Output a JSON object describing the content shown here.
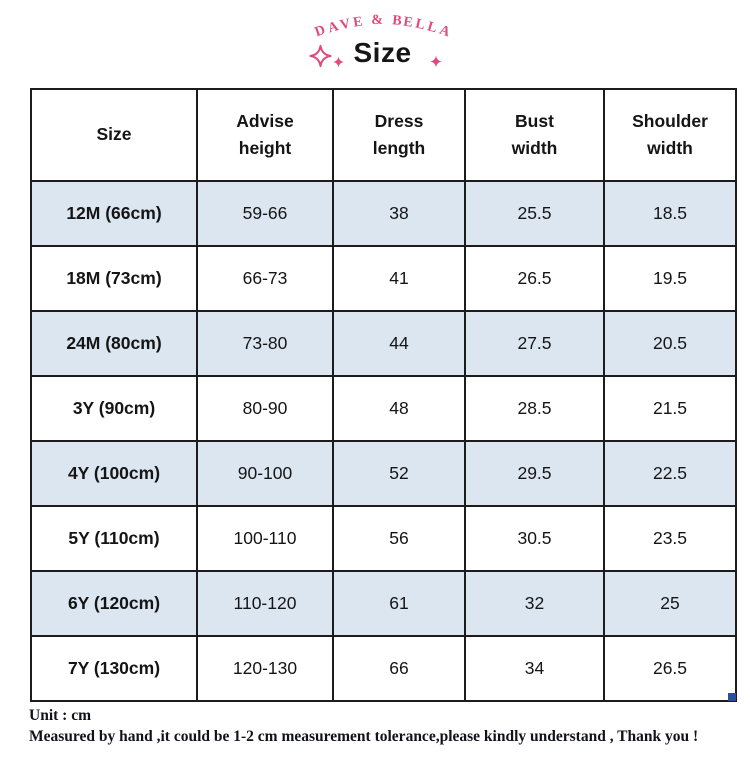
{
  "colors": {
    "accent_pink": "#e2487a",
    "stripe_blue": "#dce6f1",
    "border_dark": "#1c1c1c",
    "handle_blue": "#2e4d9b"
  },
  "header": {
    "brand": "DAVE & BELLA",
    "title": "Size"
  },
  "icons": {
    "left_large": "sparkle-4-point-outline",
    "left_small": "sparkle-4-point-filled",
    "right_small": "sparkle-4-point-filled"
  },
  "chart_data": {
    "type": "table",
    "title": "Size",
    "unit": "cm",
    "columns": [
      "Size",
      "Advise height",
      "Dress length",
      "Bust width",
      "Shoulder width"
    ],
    "rows": [
      [
        "12M (66cm)",
        "59-66",
        "38",
        "25.5",
        "18.5"
      ],
      [
        "18M (73cm)",
        "66-73",
        "41",
        "26.5",
        "19.5"
      ],
      [
        "24M (80cm)",
        "73-80",
        "44",
        "27.5",
        "20.5"
      ],
      [
        "3Y (90cm)",
        "80-90",
        "48",
        "28.5",
        "21.5"
      ],
      [
        "4Y (100cm)",
        "90-100",
        "52",
        "29.5",
        "22.5"
      ],
      [
        "5Y (110cm)",
        "100-110",
        "56",
        "30.5",
        "23.5"
      ],
      [
        "6Y (120cm)",
        "110-120",
        "61",
        "32",
        "25"
      ],
      [
        "7Y (130cm)",
        "120-130",
        "66",
        "34",
        "26.5"
      ]
    ],
    "stripe_pattern": "odd data rows (1st, 3rd, 5th, 7th) have light blue background"
  },
  "footer": {
    "unit_line": "Unit : cm",
    "note_line": "Measured by hand ,it could be 1-2 cm measurement tolerance,please kindly understand , Thank you !"
  }
}
